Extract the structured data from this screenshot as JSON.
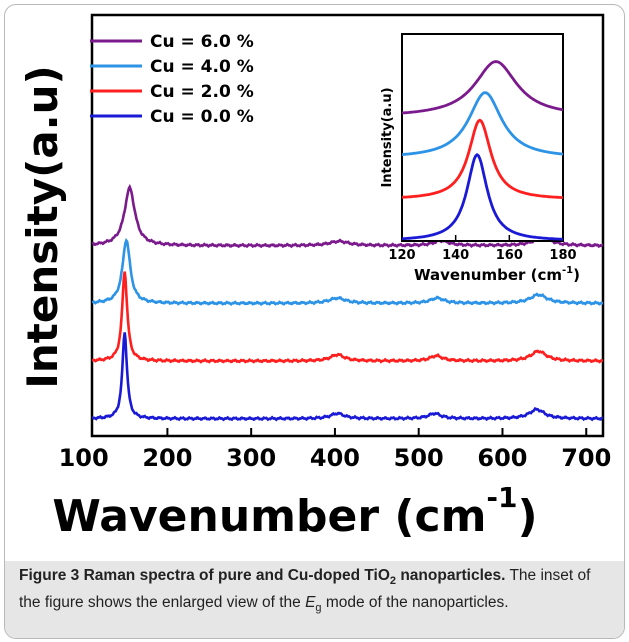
{
  "chart_data": [
    {
      "type": "line",
      "xlabel": "Wavenumber (cm",
      "xlabel_sup": "-1",
      "xlabel_end": ")",
      "ylabel": "Intensity(a.u)",
      "xlim": [
        110,
        720
      ],
      "xticks": [
        "100",
        "200",
        "300",
        "400",
        "500",
        "600",
        "700"
      ],
      "xtick_values": [
        100,
        200,
        300,
        400,
        500,
        600,
        700
      ],
      "y_ticks_shown": false,
      "legend_position": "top-left",
      "series": [
        {
          "name": "Cu = 6.0 %",
          "color": "#7b1a8c",
          "offset": 3.0,
          "peaks": [
            [
              155,
              1.0,
              7.5
            ],
            [
              405,
              0.075,
              14
            ],
            [
              527,
              0.085,
              11
            ],
            [
              648,
              0.14,
              13
            ]
          ]
        },
        {
          "name": "Cu = 4.0 %",
          "color": "#2d93e6",
          "offset": 2.0,
          "peaks": [
            [
              151,
              1.1,
              5.5
            ],
            [
              403,
              0.09,
              12
            ],
            [
              522,
              0.09,
              10
            ],
            [
              643,
              0.15,
              12
            ]
          ]
        },
        {
          "name": "Cu = 2.0 %",
          "color": "#ff1f1f",
          "offset": 1.0,
          "peaks": [
            [
              149,
              1.55,
              3.6
            ],
            [
              403,
              0.11,
              10
            ],
            [
              521,
              0.09,
              9
            ],
            [
              643,
              0.17,
              11
            ]
          ]
        },
        {
          "name": "Cu = 0.0 %",
          "color": "#1a1ad6",
          "offset": 0.0,
          "peaks": [
            [
              149,
              1.5,
              3.3
            ],
            [
              403,
              0.09,
              10
            ],
            [
              519,
              0.09,
              9
            ],
            [
              641,
              0.16,
              11
            ]
          ]
        }
      ]
    },
    {
      "type": "line",
      "role": "inset",
      "xlabel": "Wavenumber (cm",
      "xlabel_sup": "-1",
      "xlabel_end": ")",
      "ylabel": "Intensity(a.u)",
      "xlim": [
        120,
        180
      ],
      "xticks": [
        "120",
        "140",
        "160",
        "180"
      ],
      "xtick_values": [
        120,
        140,
        160,
        180
      ],
      "y_ticks_shown": false,
      "series": [
        {
          "name": "Cu = 6.0 %",
          "color": "#7b1a8c",
          "peak": 155,
          "width": 9.5,
          "height": 0.8,
          "offset": 1.8
        },
        {
          "name": "Cu = 4.0 %",
          "color": "#2d93e6",
          "peak": 151,
          "width": 7.5,
          "height": 0.95,
          "offset": 1.2
        },
        {
          "name": "Cu = 2.0 %",
          "color": "#ff1f1f",
          "peak": 149,
          "width": 5.0,
          "height": 1.15,
          "offset": 0.6
        },
        {
          "name": "Cu = 0.0 %",
          "color": "#1a1ad6",
          "peak": 148,
          "width": 4.6,
          "height": 1.25,
          "offset": 0.0
        }
      ]
    }
  ],
  "caption": {
    "title_pre": "Figure 3 Raman spectra of pure and Cu-doped TiO",
    "title_sub": "2",
    "title_post": " nanoparticles.",
    "body_pre": " The inset of the figure shows the enlarged view of the ",
    "body_mode": "E",
    "body_mode_sub": "g",
    "body_post": " mode of the nanoparticles."
  }
}
